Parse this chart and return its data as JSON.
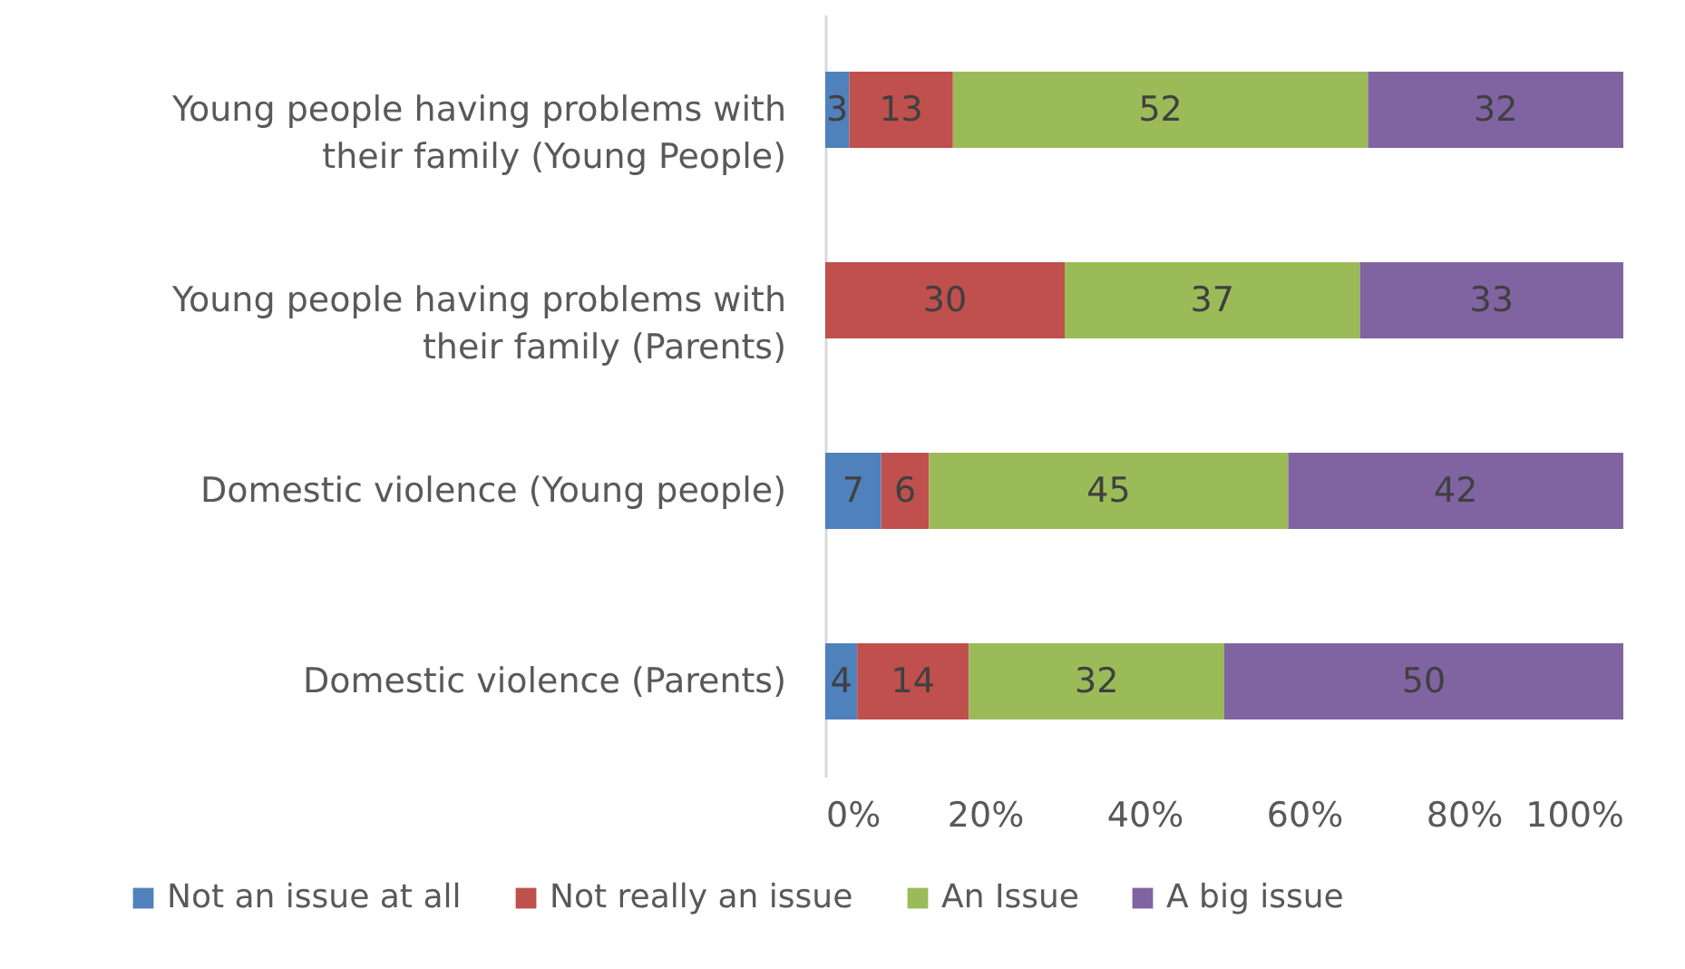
{
  "chart_data": {
    "type": "bar",
    "orientation": "horizontal",
    "stacked": true,
    "data_labels": true,
    "grid": false,
    "legend": "bottom",
    "categories": [
      "Young people having problems with their family (Young People)",
      "Young people having problems with their family (Parents)",
      "Domestic violence (Young people)",
      "Domestic violence (Parents)"
    ],
    "series": [
      {
        "name": "Not an issue at all",
        "color": "#4f81bd",
        "values": [
          3,
          null,
          7,
          4
        ]
      },
      {
        "name": "Not really an issue",
        "color": "#c0504d",
        "values": [
          13,
          30,
          6,
          14
        ]
      },
      {
        "name": "An Issue",
        "color": "#9bbb59",
        "values": [
          52,
          37,
          45,
          32
        ]
      },
      {
        "name": "A big issue",
        "color": "#8064a2",
        "values": [
          32,
          33,
          42,
          50
        ]
      }
    ],
    "xlim": [
      0,
      100
    ],
    "xticks": [
      {
        "value": 0,
        "label": "0%"
      },
      {
        "value": 20,
        "label": "20%"
      },
      {
        "value": 40,
        "label": "40%"
      },
      {
        "value": 60,
        "label": "60%"
      },
      {
        "value": 80,
        "label": "80%"
      },
      {
        "value": 100,
        "label": "100%"
      }
    ]
  }
}
